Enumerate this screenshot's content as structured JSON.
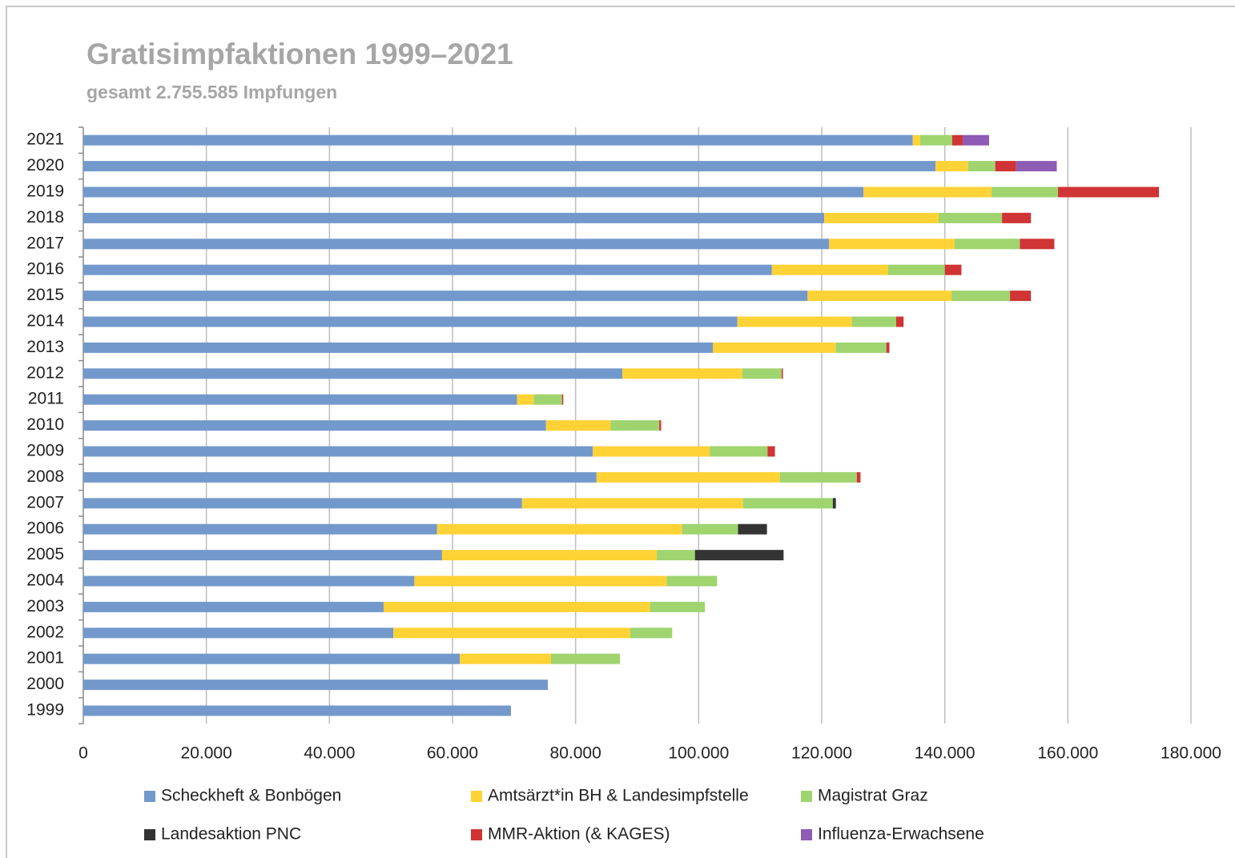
{
  "chart_data": {
    "type": "bar",
    "orientation": "horizontal",
    "stacked": true,
    "title": "Gratisimpfaktionen 1999–2021",
    "subtitle": "gesamt  2.755.585 Impfungen",
    "categories": [
      "2021",
      "2020",
      "2019",
      "2018",
      "2017",
      "2016",
      "2015",
      "2014",
      "2013",
      "2012",
      "2011",
      "2010",
      "2009",
      "2008",
      "2007",
      "2006",
      "2005",
      "2004",
      "2003",
      "2002",
      "2001",
      "2000",
      "1999"
    ],
    "series": [
      {
        "name": "Scheckheft & Bonbögen",
        "color": "#7399cc",
        "values": [
          134800,
          138500,
          126800,
          120400,
          121200,
          111900,
          117700,
          106300,
          102300,
          87600,
          70500,
          75200,
          82800,
          83400,
          71300,
          57500,
          58300,
          53800,
          48800,
          50400,
          61200,
          75500,
          69500
        ]
      },
      {
        "name": "Amtsärzt*in BH & Landesimpfstelle",
        "color": "#ffd236",
        "values": [
          1200,
          5300,
          20800,
          18600,
          20400,
          18900,
          23400,
          18600,
          20000,
          19500,
          2700,
          10500,
          19000,
          29800,
          35900,
          39800,
          34900,
          41000,
          43300,
          38500,
          14800,
          null,
          null
        ]
      },
      {
        "name": "Magistrat Graz",
        "color": "#9fd46f",
        "values": [
          5200,
          4400,
          10800,
          10300,
          10600,
          9200,
          9500,
          7200,
          8200,
          6400,
          4600,
          7900,
          9400,
          12500,
          14600,
          9100,
          6200,
          8200,
          8900,
          6800,
          11200,
          null,
          null
        ]
      },
      {
        "name": "Landesaktion PNC",
        "color": "#333333",
        "values": [
          null,
          null,
          null,
          null,
          null,
          null,
          null,
          null,
          null,
          null,
          null,
          null,
          null,
          null,
          500,
          4700,
          14400,
          null,
          null,
          null,
          null,
          null,
          null
        ]
      },
      {
        "name": "MMR-Aktion (& KAGES)",
        "color": "#d03434",
        "values": [
          1700,
          3400,
          16400,
          4700,
          5600,
          2700,
          3400,
          1200,
          500,
          200,
          200,
          300,
          1200,
          600,
          null,
          null,
          null,
          null,
          null,
          null,
          null,
          null,
          null
        ]
      },
      {
        "name": "Influenza-Erwachsene",
        "color": "#8e5bb5",
        "values": [
          4300,
          6600,
          null,
          null,
          null,
          null,
          null,
          null,
          null,
          null,
          null,
          null,
          null,
          null,
          null,
          null,
          null,
          null,
          null,
          null,
          null,
          null,
          null
        ]
      }
    ],
    "xlim": [
      0,
      180000
    ],
    "xticks": [
      0,
      {
        "value": 20000,
        "label": "20.000"
      },
      {
        "value": 40000,
        "label": "40.000"
      },
      {
        "value": 60000,
        "label": "60.000"
      },
      {
        "value": 80000,
        "label": "80.000"
      },
      {
        "value": 100000,
        "label": "100.000"
      },
      {
        "value": 120000,
        "label": "120.000"
      },
      {
        "value": 140000,
        "label": "140.000"
      },
      {
        "value": 160000,
        "label": "160.000"
      },
      {
        "value": 180000,
        "label": "180.000"
      }
    ],
    "grid": true,
    "legend": "bottom"
  }
}
